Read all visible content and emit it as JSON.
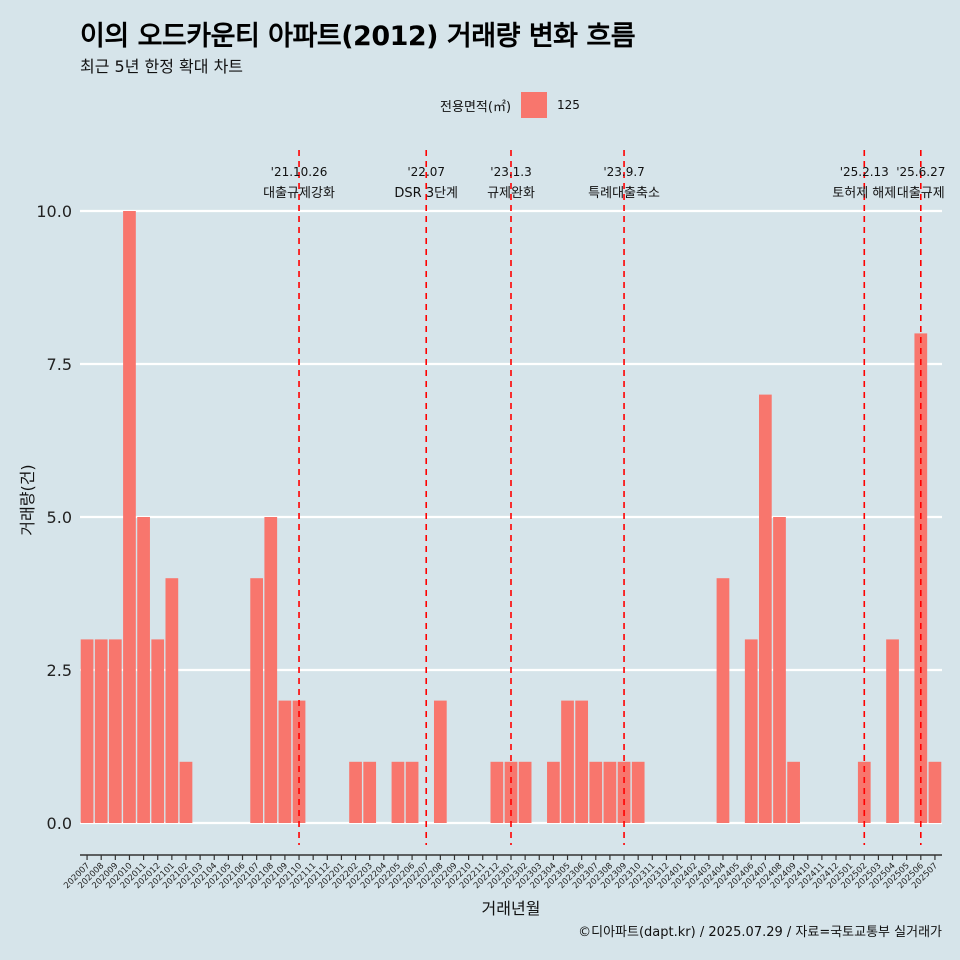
{
  "title": "이의 오드카운티 아파트(2012) 거래량 변화 흐름",
  "subtitle": "최근 5년 한정 확대 차트",
  "caption": "©디아파트(dapt.kr) / 2025.07.29 / 자료=국토교통부 실거래가",
  "legend": {
    "title": "전용면적(㎡)",
    "item": "125"
  },
  "colors": {
    "bar": "#f8766d",
    "background": "#d6e4ea",
    "grid": "#ffffff",
    "event_line": "#ff0000"
  },
  "chart_data": {
    "type": "bar",
    "xlabel": "거래년월",
    "ylabel": "거래량(건)",
    "ylim": [
      0,
      10
    ],
    "yticks": [
      "0.0",
      "2.5",
      "5.0",
      "7.5",
      "10.0"
    ],
    "ytick_values": [
      0,
      2.5,
      5,
      7.5,
      10
    ],
    "grid": true,
    "legend_position": "top",
    "categories": [
      "202007",
      "202008",
      "202009",
      "202010",
      "202011",
      "202012",
      "202101",
      "202102",
      "202103",
      "202104",
      "202105",
      "202106",
      "202107",
      "202108",
      "202109",
      "202110",
      "202111",
      "202112",
      "202201",
      "202202",
      "202203",
      "202204",
      "202205",
      "202206",
      "202207",
      "202208",
      "202209",
      "202210",
      "202211",
      "202212",
      "202301",
      "202302",
      "202303",
      "202304",
      "202305",
      "202306",
      "202307",
      "202308",
      "202309",
      "202310",
      "202311",
      "202312",
      "202401",
      "202402",
      "202403",
      "202404",
      "202405",
      "202406",
      "202407",
      "202408",
      "202409",
      "202410",
      "202411",
      "202412",
      "202501",
      "202502",
      "202503",
      "202504",
      "202505",
      "202506",
      "202507"
    ],
    "series": [
      {
        "name": "125",
        "values": [
          3,
          3,
          3,
          10,
          5,
          3,
          4,
          1,
          0,
          0,
          0,
          0,
          4,
          5,
          2,
          2,
          0,
          0,
          0,
          1,
          1,
          0,
          1,
          1,
          0,
          2,
          0,
          0,
          0,
          1,
          1,
          1,
          0,
          1,
          2,
          2,
          1,
          1,
          1,
          1,
          0,
          0,
          0,
          0,
          0,
          4,
          0,
          3,
          7,
          5,
          1,
          0,
          0,
          0,
          0,
          1,
          0,
          3,
          0,
          8,
          1
        ]
      }
    ],
    "annotations": [
      {
        "date": "'21.10.26",
        "label": "대출규제강화",
        "at_category": "202110"
      },
      {
        "date": "'22.07",
        "label": "DSR 3단계",
        "at_category": "202207"
      },
      {
        "date": "'23.1.3",
        "label": "규제완화",
        "at_category": "202301"
      },
      {
        "date": "'23.9.7",
        "label": "특례대출축소",
        "at_category": "202309"
      },
      {
        "date": "'25.2.13",
        "label": "토허제 해제",
        "at_category": "202502"
      },
      {
        "date": "'25.6.27",
        "label": "대출규제",
        "at_category": "202506"
      }
    ]
  }
}
